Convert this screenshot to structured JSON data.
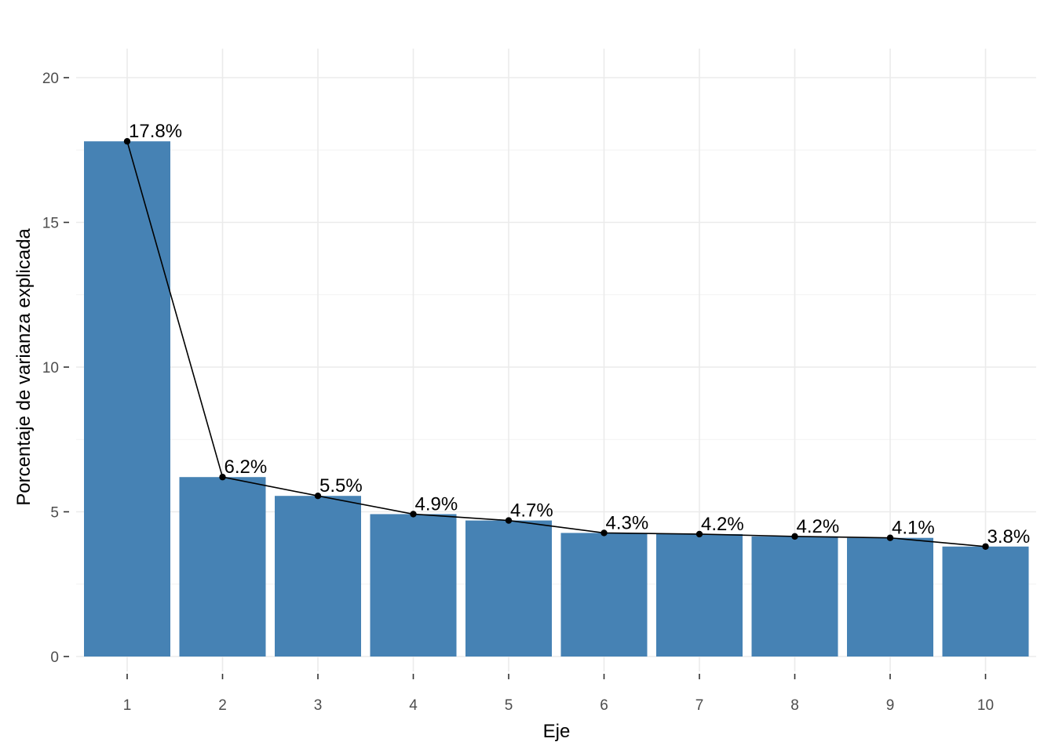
{
  "chart_data": {
    "type": "bar",
    "title": "",
    "xlabel": "Eje",
    "ylabel": "Porcentaje de varianza explicada",
    "categories": [
      "1",
      "2",
      "3",
      "4",
      "5",
      "6",
      "7",
      "8",
      "9",
      "10"
    ],
    "values": [
      17.8,
      6.2,
      5.55,
      4.92,
      4.7,
      4.27,
      4.23,
      4.15,
      4.1,
      3.8
    ],
    "data_labels": [
      "17.8%",
      "6.2%",
      "5.5%",
      "4.9%",
      "4.7%",
      "4.3%",
      "4.2%",
      "4.2%",
      "4.1%",
      "3.8%"
    ],
    "overlay": "line-with-points",
    "ylim": [
      0,
      20
    ],
    "y_ticks": [
      0,
      5,
      10,
      15,
      20
    ],
    "grid": true,
    "legend": "none",
    "colors": {
      "bar": "#4682b4",
      "line": "#000000",
      "point": "#000000"
    }
  }
}
